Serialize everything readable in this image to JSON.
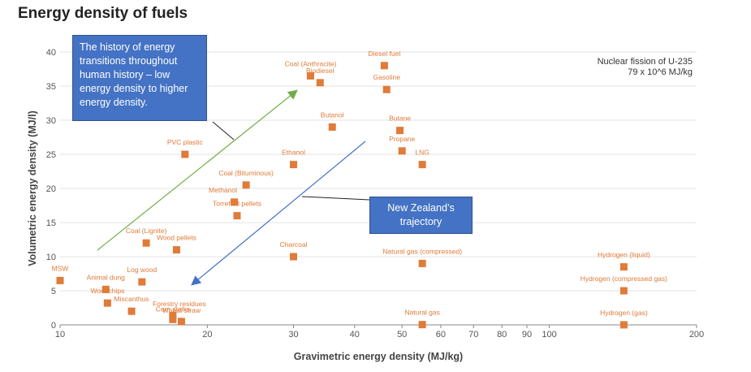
{
  "chart_data": {
    "type": "scatter",
    "title": "Energy density of fuels",
    "xlabel": "Gravimetric energy density (MJ/kg)",
    "ylabel": "Volumetric energy density (MJ/l)",
    "xscale": "log",
    "xlim": [
      10,
      200
    ],
    "ylim": [
      0,
      40
    ],
    "xticks": [
      10,
      20,
      30,
      40,
      50,
      60,
      70,
      80,
      90,
      100,
      200
    ],
    "yticks": [
      0,
      5,
      10,
      15,
      20,
      25,
      30,
      35,
      40
    ],
    "grid": "horizontal",
    "marker_color": "#E07B39",
    "points": [
      {
        "label": "Diesel fuel",
        "x": 46,
        "y": 38
      },
      {
        "label": "Coal (Anthracite)",
        "x": 32.5,
        "y": 36.5
      },
      {
        "label": "Biodiesel",
        "x": 34,
        "y": 35.5
      },
      {
        "label": "Gasoline",
        "x": 46.5,
        "y": 34.5
      },
      {
        "label": "Butanol",
        "x": 36,
        "y": 29
      },
      {
        "label": "Butane",
        "x": 49.5,
        "y": 28.5
      },
      {
        "label": "Propane",
        "x": 50,
        "y": 25.5
      },
      {
        "label": "LNG",
        "x": 55,
        "y": 23.5
      },
      {
        "label": "PVC plastic",
        "x": 18,
        "y": 25
      },
      {
        "label": "Ethanol",
        "x": 30,
        "y": 23.5
      },
      {
        "label": "Coal (Bituminous)",
        "x": 24,
        "y": 20.5
      },
      {
        "label": "Methanol",
        "x": 22.7,
        "y": 18
      },
      {
        "label": "Torrefied pellets",
        "x": 23,
        "y": 16
      },
      {
        "label": "Coal (Lignite)",
        "x": 15,
        "y": 12
      },
      {
        "label": "Wood pellets",
        "x": 17.3,
        "y": 11
      },
      {
        "label": "Charcoal",
        "x": 30,
        "y": 10
      },
      {
        "label": "Natural gas (compressed)",
        "x": 55,
        "y": 9
      },
      {
        "label": "Hydrogen (liquid)",
        "x": 142,
        "y": 8.5
      },
      {
        "label": "MSW",
        "x": 10,
        "y": 6.5
      },
      {
        "label": "Log wood",
        "x": 14.7,
        "y": 6.3
      },
      {
        "label": "Animal dung",
        "x": 12.4,
        "y": 5.2
      },
      {
        "label": "Hydrogen (compressed gas)",
        "x": 142,
        "y": 5
      },
      {
        "label": "Woodchips",
        "x": 12.5,
        "y": 3.2
      },
      {
        "label": "Forestry residues",
        "x": 17,
        "y": 1.4
      },
      {
        "label": "Miscanthus",
        "x": 14,
        "y": 2
      },
      {
        "label": "Corn stalks",
        "x": 17,
        "y": 0.8
      },
      {
        "label": "Wheat straw",
        "x": 17.7,
        "y": 0.5
      },
      {
        "label": "Natural gas",
        "x": 55,
        "y": 0.04
      },
      {
        "label": "Hydrogen (gas)",
        "x": 142,
        "y": 0.01
      }
    ],
    "annotations": [
      {
        "text": "Nuclear fission of U-235",
        "line2": "79 x 10^6 MJ/kg"
      }
    ]
  },
  "callouts": {
    "history": "The history of energy transitions throughout human history – low energy density to higher energy density.",
    "nz": "New Zealand’s trajectory"
  },
  "colors": {
    "marker": "#E07B39",
    "green_arrow": "#70AD47",
    "blue_arrow": "#4472C4",
    "callout_bg": "#4472C4"
  }
}
